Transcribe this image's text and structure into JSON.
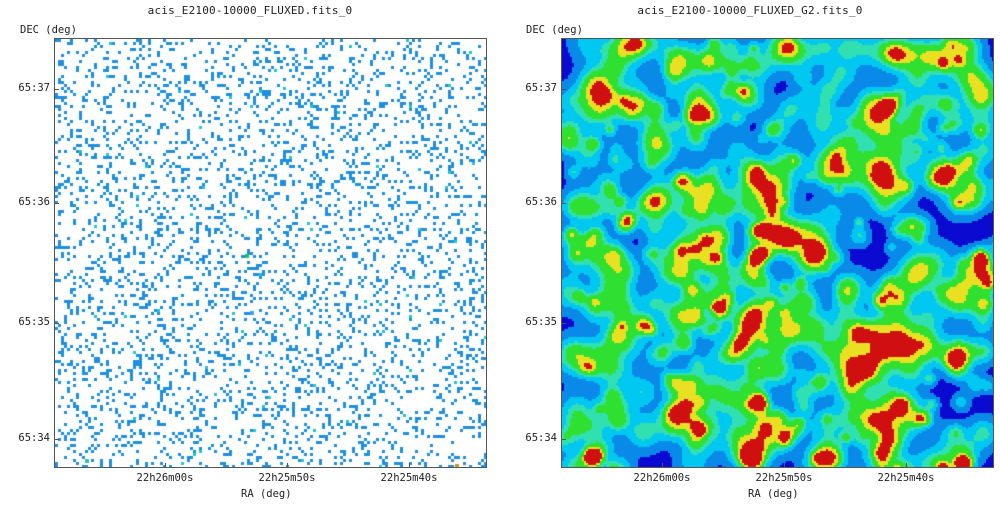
{
  "panels": [
    {
      "title": "acis_E2100-10000_FLUXED.fits_0",
      "y_axis_label": "DEC (deg)",
      "x_axis_label": "RA (deg)",
      "y_ticks": [
        "65:37",
        "65:36",
        "65:35",
        "65:34"
      ],
      "x_ticks": [
        "22h26m00s",
        "22h25m50s",
        "22h25m40s"
      ],
      "image_style": "sparse-events"
    },
    {
      "title": "acis_E2100-10000_FLUXED_G2.fits_0",
      "y_axis_label": "DEC (deg)",
      "x_axis_label": "RA (deg)",
      "y_ticks": [
        "65:37",
        "65:36",
        "65:35",
        "65:34"
      ],
      "x_ticks": [
        "22h26m00s",
        "22h25m50s",
        "22h25m40s"
      ],
      "image_style": "smoothed-heatmap"
    }
  ],
  "colors": {
    "background": "#ffffff",
    "sparse_pixel": "#1e8fe0",
    "heat_low": "#0a0ad0",
    "heat_mid": "#00c8f0",
    "heat_high": "#30e030",
    "heat_peak": "#d01010"
  }
}
